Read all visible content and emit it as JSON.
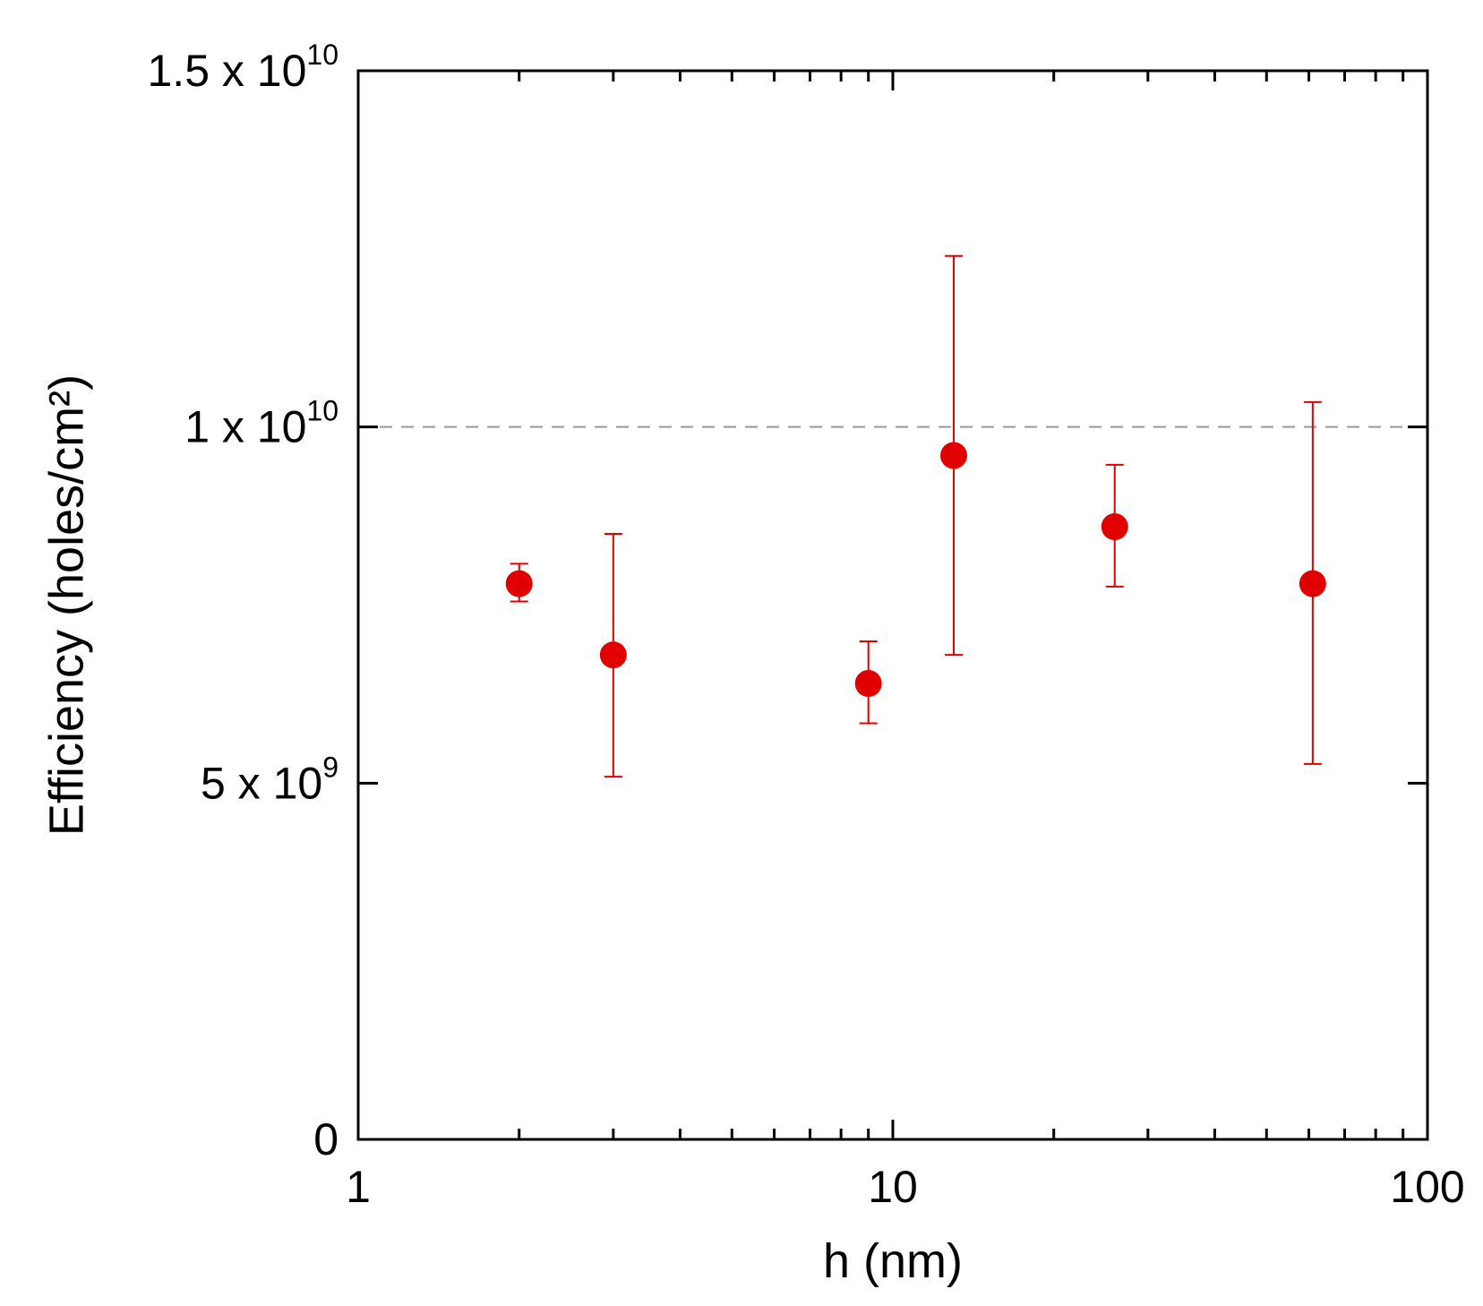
{
  "chart_data": {
    "type": "scatter",
    "title": "",
    "xlabel": "h (nm)",
    "ylabel": "Efficiency (holes/cm²)",
    "xscale": "log",
    "xlim": [
      1,
      100
    ],
    "ylim": [
      0,
      15000000000
    ],
    "grid": false,
    "legend": "none",
    "marker_color": "#e00000",
    "reference_line": {
      "y": 10000000000,
      "style": "dashed",
      "color": "#999999"
    },
    "x_ticks": [
      {
        "value": 1,
        "label": "1"
      },
      {
        "value": 10,
        "label": "10"
      },
      {
        "value": 100,
        "label": "100"
      }
    ],
    "y_ticks": [
      {
        "value": 0,
        "mant": "0",
        "exp": ""
      },
      {
        "value": 5000000000,
        "mant": "5 x 10",
        "exp": "9"
      },
      {
        "value": 10000000000,
        "mant": "1 x 10",
        "exp": "10"
      },
      {
        "value": 15000000000,
        "mant": "1.5 x 10",
        "exp": "10"
      }
    ],
    "series": [
      {
        "points": [
          {
            "x": 2.0,
            "y": 7800000000,
            "err_low": 7550000000,
            "err_high": 8080000000
          },
          {
            "x": 3.0,
            "y": 6800000000,
            "err_low": 5090000000,
            "err_high": 8500000000
          },
          {
            "x": 9.0,
            "y": 6400000000,
            "err_low": 5840000000,
            "err_high": 6990000000
          },
          {
            "x": 13.0,
            "y": 9600000000,
            "err_low": 6800000000,
            "err_high": 12400000000
          },
          {
            "x": 26.0,
            "y": 8600000000,
            "err_low": 7760000000,
            "err_high": 9470000000
          },
          {
            "x": 61.0,
            "y": 7800000000,
            "err_low": 5270000000,
            "err_high": 10350000000
          }
        ]
      }
    ]
  }
}
